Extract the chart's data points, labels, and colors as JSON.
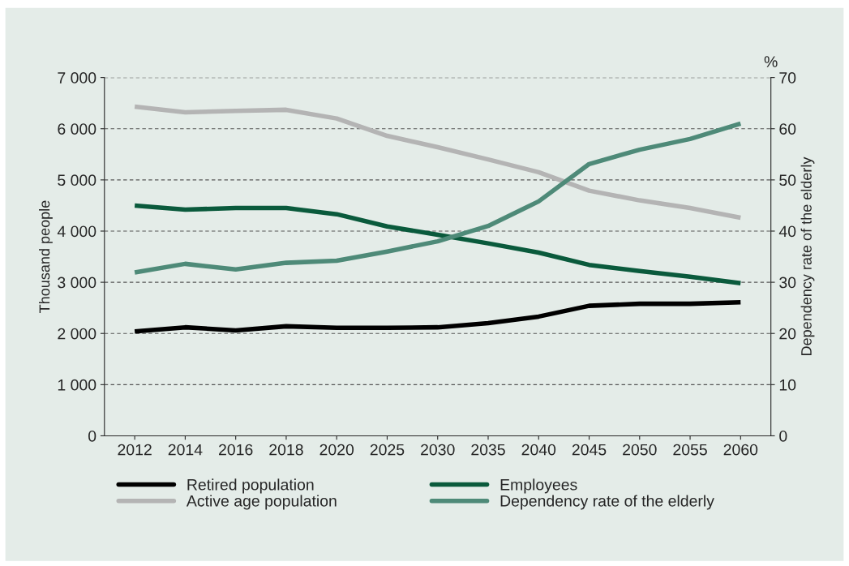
{
  "chart_data": {
    "type": "line",
    "categories": [
      "2012",
      "2014",
      "2016",
      "2018",
      "2020",
      "2025",
      "2030",
      "2035",
      "2040",
      "2045",
      "2050",
      "2055",
      "2060"
    ],
    "series": [
      {
        "name": "Retired population",
        "color": "#000000",
        "values": [
          2040,
          2120,
          2060,
          2140,
          2110,
          2110,
          2120,
          2200,
          2330,
          2540,
          2580,
          2580,
          2610
        ]
      },
      {
        "name": "Employees",
        "color": "#0a5a3c",
        "values": [
          4500,
          4420,
          4450,
          4450,
          4330,
          4090,
          3930,
          3760,
          3580,
          3340,
          3220,
          3110,
          2980
        ]
      },
      {
        "name": "Active age population",
        "color": "#b4b4b4",
        "values": [
          6430,
          6320,
          6350,
          6370,
          6200,
          5860,
          5640,
          5400,
          5150,
          4790,
          4600,
          4450,
          4260
        ]
      },
      {
        "name": "Dependency rate of the elderly",
        "color": "#4e8a78",
        "axis": "y2",
        "values": [
          31.9,
          33.6,
          32.5,
          33.8,
          34.2,
          36.0,
          38.0,
          41.0,
          45.8,
          53.1,
          55.9,
          58.0,
          61.0
        ]
      }
    ],
    "ylabel": "Thousand people",
    "y2label": "Dependency rate of the elderly",
    "ylim": [
      0,
      7000
    ],
    "yticks": [
      0,
      {
        "value": 1000,
        "label": "1 000"
      },
      {
        "value": 2000,
        "label": "2 000"
      },
      {
        "value": 3000,
        "label": "3 000"
      },
      {
        "value": 4000,
        "label": "4 000"
      },
      {
        "value": 5000,
        "label": "5 000"
      },
      {
        "value": 6000,
        "label": "6 000"
      },
      {
        "value": 7000,
        "label": "7 000"
      }
    ],
    "y2lim": [
      0,
      70
    ],
    "y2ticks": [
      0,
      10,
      20,
      30,
      40,
      50,
      60,
      70
    ],
    "annotations": [
      "%"
    ],
    "grid": "y",
    "legend": "bottom",
    "marker": "none",
    "line_style": "solid"
  }
}
